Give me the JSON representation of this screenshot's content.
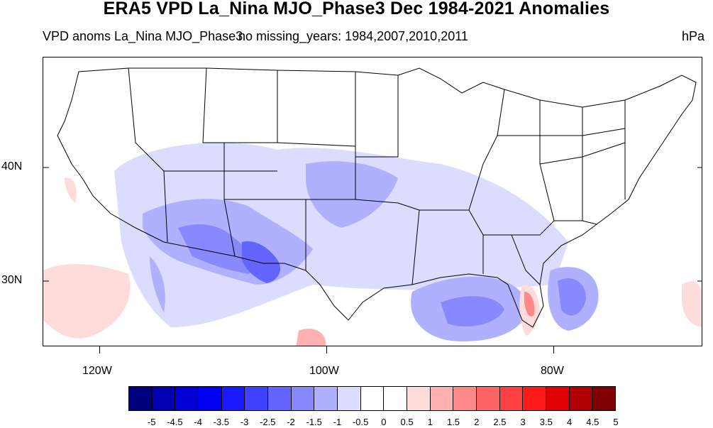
{
  "title": "ERA5 VPD La_Nina MJO_Phase3 Dec 1984-2021 Anomalies",
  "subtitle_left": "VPD anoms La_Nina MJO_Phase3",
  "subtitle_mid": "no missing_years: 1984,2007,2010,2011",
  "units": "hPa",
  "map": {
    "region": "Contiguous United States",
    "lat_labels": [
      "40N",
      "30N"
    ],
    "lon_labels": [
      "120W",
      "100W",
      "80W"
    ]
  },
  "colorbar": {
    "labels": [
      "-5",
      "-4.5",
      "-4",
      "-3.5",
      "-3",
      "-2.5",
      "-2",
      "-1.5",
      "-1",
      "-0.5",
      "0",
      "0.5",
      "1",
      "1.5",
      "2",
      "2.5",
      "3",
      "3.5",
      "4",
      "4.5",
      "5"
    ],
    "colors": [
      "#00007f",
      "#0000b2",
      "#0000d6",
      "#0000f4",
      "#1a1aff",
      "#4040ff",
      "#6464ff",
      "#8888ff",
      "#b0b0ff",
      "#dcdcff",
      "#ffffff",
      "#ffffff",
      "#ffdcdc",
      "#ffb0b0",
      "#ff8888",
      "#ff6464",
      "#ff4040",
      "#ff1a1a",
      "#e00000",
      "#b20000",
      "#7f0000"
    ]
  }
}
